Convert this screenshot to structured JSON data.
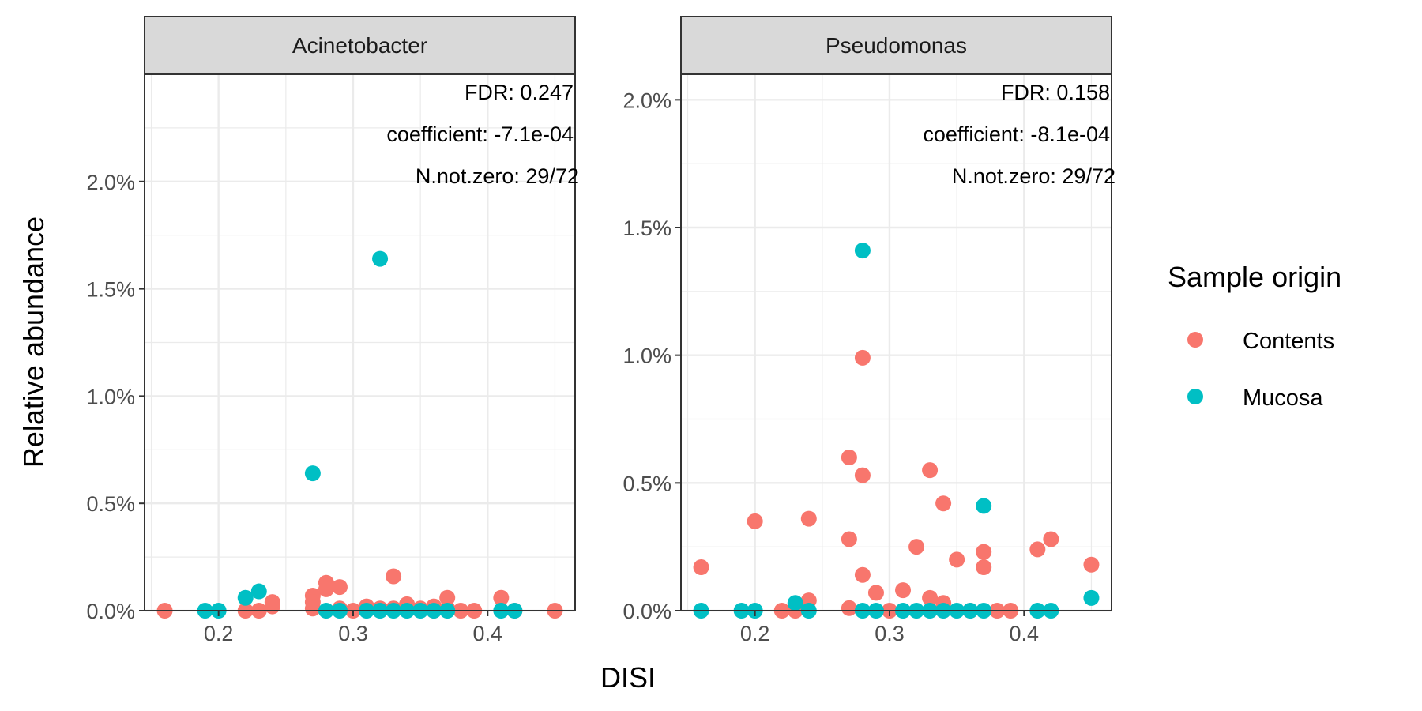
{
  "chart_data": {
    "type": "scatter",
    "xlabel": "DISI",
    "ylabel": "Relative abundance",
    "legend": {
      "title": "Sample origin",
      "placement": "right",
      "entries": [
        {
          "name": "Contents",
          "color": "#F8766D"
        },
        {
          "name": "Mucosa",
          "color": "#00BFC4"
        }
      ]
    },
    "grid": true,
    "panels": [
      {
        "title": "Acinetobacter",
        "annotations": [
          "FDR: 0.247",
          "coefficient: -7.1e-04",
          "N.not.zero: 29/72"
        ],
        "xlim": [
          0.145,
          0.465
        ],
        "ylim": [
          0,
          2.5
        ],
        "x_ticks": [
          {
            "v": 0.2,
            "label": "0.2"
          },
          {
            "v": 0.3,
            "label": "0.3"
          },
          {
            "v": 0.4,
            "label": "0.4"
          }
        ],
        "y_ticks": [
          {
            "v": 0,
            "label": "0.0%"
          },
          {
            "v": 0.5,
            "label": "0.5%"
          },
          {
            "v": 1.0,
            "label": "1.0%"
          },
          {
            "v": 1.5,
            "label": "1.5%"
          },
          {
            "v": 2.0,
            "label": "2.0%"
          }
        ],
        "series": [
          {
            "name": "Contents",
            "points": [
              [
                0.16,
                0.0
              ],
              [
                0.22,
                0.0
              ],
              [
                0.23,
                0.0
              ],
              [
                0.24,
                0.04
              ],
              [
                0.24,
                0.02
              ],
              [
                0.27,
                0.07
              ],
              [
                0.27,
                0.04
              ],
              [
                0.27,
                0.01
              ],
              [
                0.28,
                0.13
              ],
              [
                0.28,
                0.1
              ],
              [
                0.29,
                0.11
              ],
              [
                0.29,
                0.01
              ],
              [
                0.31,
                0.02
              ],
              [
                0.32,
                0.01
              ],
              [
                0.33,
                0.16
              ],
              [
                0.33,
                0.01
              ],
              [
                0.34,
                0.03
              ],
              [
                0.34,
                0.01
              ],
              [
                0.35,
                0.01
              ],
              [
                0.36,
                0.02
              ],
              [
                0.36,
                0.0
              ],
              [
                0.37,
                0.06
              ],
              [
                0.37,
                0.01
              ],
              [
                0.38,
                0.0
              ],
              [
                0.39,
                0.0
              ],
              [
                0.41,
                0.06
              ],
              [
                0.42,
                0.0
              ],
              [
                0.45,
                0.0
              ],
              [
                0.3,
                0.0
              ]
            ]
          },
          {
            "name": "Mucosa",
            "points": [
              [
                0.19,
                0.0
              ],
              [
                0.2,
                0.0
              ],
              [
                0.22,
                0.06
              ],
              [
                0.23,
                0.09
              ],
              [
                0.27,
                0.64
              ],
              [
                0.28,
                0.0
              ],
              [
                0.29,
                0.0
              ],
              [
                0.31,
                0.0
              ],
              [
                0.32,
                1.64
              ],
              [
                0.32,
                0.0
              ],
              [
                0.33,
                0.0
              ],
              [
                0.34,
                0.0
              ],
              [
                0.35,
                0.0
              ],
              [
                0.36,
                0.0
              ],
              [
                0.37,
                0.0
              ],
              [
                0.41,
                0.0
              ],
              [
                0.42,
                0.0
              ]
            ]
          }
        ]
      },
      {
        "title": "Pseudomonas",
        "annotations": [
          "FDR: 0.158",
          "coefficient: -8.1e-04",
          "N.not.zero: 29/72"
        ],
        "xlim": [
          0.145,
          0.465
        ],
        "ylim": [
          0,
          2.1
        ],
        "x_ticks": [
          {
            "v": 0.2,
            "label": "0.2"
          },
          {
            "v": 0.3,
            "label": "0.3"
          },
          {
            "v": 0.4,
            "label": "0.4"
          }
        ],
        "y_ticks": [
          {
            "v": 0,
            "label": "0.0%"
          },
          {
            "v": 0.5,
            "label": "0.5%"
          },
          {
            "v": 1.0,
            "label": "1.0%"
          },
          {
            "v": 1.5,
            "label": "1.5%"
          },
          {
            "v": 2.0,
            "label": "2.0%"
          }
        ],
        "series": [
          {
            "name": "Contents",
            "points": [
              [
                0.16,
                0.17
              ],
              [
                0.2,
                0.35
              ],
              [
                0.22,
                0.0
              ],
              [
                0.23,
                0.0
              ],
              [
                0.24,
                0.36
              ],
              [
                0.24,
                0.04
              ],
              [
                0.27,
                0.6
              ],
              [
                0.27,
                0.28
              ],
              [
                0.27,
                0.01
              ],
              [
                0.28,
                0.99
              ],
              [
                0.28,
                0.53
              ],
              [
                0.28,
                0.14
              ],
              [
                0.29,
                0.07
              ],
              [
                0.31,
                0.08
              ],
              [
                0.32,
                0.25
              ],
              [
                0.33,
                0.55
              ],
              [
                0.33,
                0.05
              ],
              [
                0.34,
                0.42
              ],
              [
                0.34,
                0.03
              ],
              [
                0.35,
                0.2
              ],
              [
                0.37,
                0.23
              ],
              [
                0.37,
                0.17
              ],
              [
                0.38,
                0.0
              ],
              [
                0.39,
                0.0
              ],
              [
                0.41,
                0.24
              ],
              [
                0.42,
                0.28
              ],
              [
                0.45,
                0.18
              ],
              [
                0.3,
                0.0
              ],
              [
                0.36,
                0.0
              ]
            ]
          },
          {
            "name": "Mucosa",
            "points": [
              [
                0.16,
                0.0
              ],
              [
                0.19,
                0.0
              ],
              [
                0.2,
                0.0
              ],
              [
                0.23,
                0.03
              ],
              [
                0.24,
                0.0
              ],
              [
                0.28,
                1.41
              ],
              [
                0.28,
                0.0
              ],
              [
                0.29,
                0.0
              ],
              [
                0.31,
                0.0
              ],
              [
                0.32,
                0.0
              ],
              [
                0.33,
                0.0
              ],
              [
                0.34,
                0.0
              ],
              [
                0.35,
                0.0
              ],
              [
                0.36,
                0.0
              ],
              [
                0.37,
                0.41
              ],
              [
                0.37,
                0.0
              ],
              [
                0.41,
                0.0
              ],
              [
                0.42,
                0.0
              ],
              [
                0.45,
                0.05
              ]
            ]
          }
        ]
      }
    ]
  }
}
